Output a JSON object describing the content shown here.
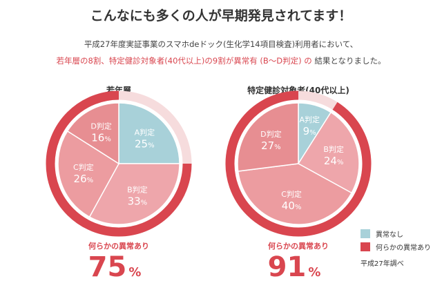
{
  "headline": "こんなにも多くの人が早期発見されてます！",
  "intro": {
    "line1": "平成27年度実証事業のスマホdeドック(生化学14項目検査)利用者において、",
    "line2_part1": "若年層の8割、特定健診対象者(40代以上)の9割が異常有 (B〜D判定) の",
    "line2_part2": "結果となりました。"
  },
  "chart_data": [
    {
      "type": "pie",
      "title": "若年層",
      "categories": [
        "A判定",
        "B判定",
        "C判定",
        "D判定"
      ],
      "values": [
        25,
        33,
        26,
        16
      ],
      "value_labels": [
        "25",
        "33",
        "26",
        "16"
      ],
      "unit": "%",
      "abnormal_label": "何らかの異常あり",
      "abnormal_value": "75",
      "abnormal_fraction": 0.75,
      "colors": [
        "#a8d1d9",
        "#eea6ab",
        "#ec9ca0",
        "#e78e92"
      ]
    },
    {
      "type": "pie",
      "title": "特定健診対象者(40代以上)",
      "categories": [
        "A判定",
        "B判定",
        "C判定",
        "D判定"
      ],
      "values": [
        9,
        24,
        40,
        27
      ],
      "value_labels": [
        "9",
        "24",
        "40",
        "27"
      ],
      "unit": "%",
      "abnormal_label": "何らかの異常あり",
      "abnormal_value": "91",
      "abnormal_fraction": 0.91,
      "colors": [
        "#a8d1d9",
        "#eea6ab",
        "#ec9ca0",
        "#e78e92"
      ]
    }
  ],
  "legend": {
    "items": [
      {
        "label": "異常なし",
        "color": "#a8d1d9"
      },
      {
        "label": "何らかの異常あり",
        "color": "#d9464f"
      }
    ],
    "source": "平成27年調べ"
  },
  "colors": {
    "ring": "#d9464f",
    "ring_track": "#f6dcdd",
    "accent_text": "#d9464f"
  }
}
